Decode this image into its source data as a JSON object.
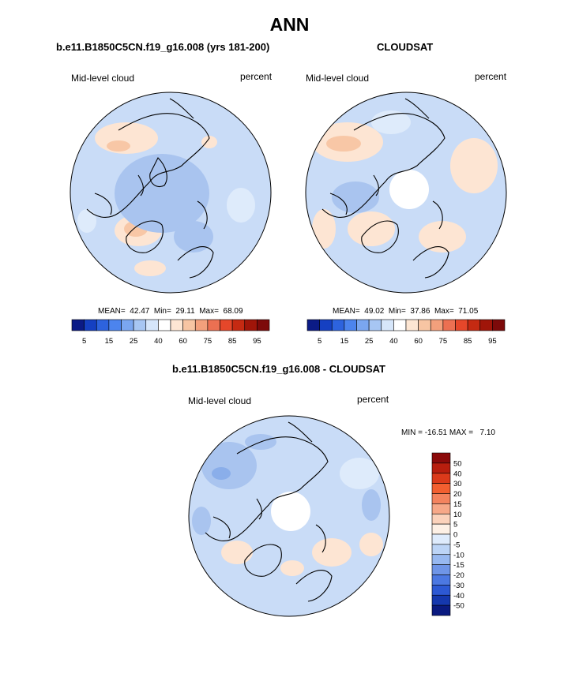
{
  "title": "ANN",
  "panels": [
    {
      "heading": "b.e11.B1850C5CN.f19_g16.008 (yrs 181-200)",
      "field_label": "Mid-level cloud",
      "units": "percent",
      "stats": "MEAN=  42.47  Min=  29.11  Max=  68.09"
    },
    {
      "heading": "CLOUDSAT",
      "field_label": "Mid-level cloud",
      "units": "percent",
      "stats": "MEAN=  49.02  Min=  37.86  Max=  71.05"
    }
  ],
  "abs_colorbar": {
    "colors": [
      "#0b1b86",
      "#1540c2",
      "#2d63de",
      "#4c84ee",
      "#7aa6f0",
      "#a7c6f3",
      "#d6e6fa",
      "#ffffff",
      "#fde6d3",
      "#f7c5a3",
      "#f3a07c",
      "#ec7052",
      "#e5472a",
      "#c52a12",
      "#a01509",
      "#7d0a0a"
    ],
    "labels": [
      "5",
      "15",
      "25",
      "40",
      "60",
      "75",
      "85",
      "95"
    ]
  },
  "diff_panel": {
    "heading": "b.e11.B1850C5CN.f19_g16.008 - CLOUDSAT",
    "field_label": "Mid-level cloud",
    "units": "percent",
    "stats": "MIN = -16.51 MAX =   7.10"
  },
  "diff_colorbar": {
    "colors": [
      "#8b0a0a",
      "#b81e0e",
      "#db3a1a",
      "#f25f30",
      "#f4835e",
      "#f7a888",
      "#fbd2bb",
      "#fdf0e5",
      "#deebfc",
      "#bcd4f6",
      "#97b8f0",
      "#6f95e7",
      "#4c78e2",
      "#2d59d4",
      "#1538ae",
      "#0a1a80"
    ],
    "labels": [
      "50",
      "40",
      "30",
      "20",
      "15",
      "10",
      "5",
      "0",
      "-5",
      "-10",
      "-15",
      "-20",
      "-30",
      "-40",
      "-50"
    ]
  },
  "map_colors": {
    "base": "#c9dcf7",
    "lighter": "#deebfb",
    "darker": "#a9c4ef",
    "darkest": "#8aaeea",
    "warm": "#fde5d3",
    "warmer": "#f8c7a6",
    "warmest": "#f3a17e",
    "coast": "#000000",
    "pole_hole": "#ffffff"
  }
}
